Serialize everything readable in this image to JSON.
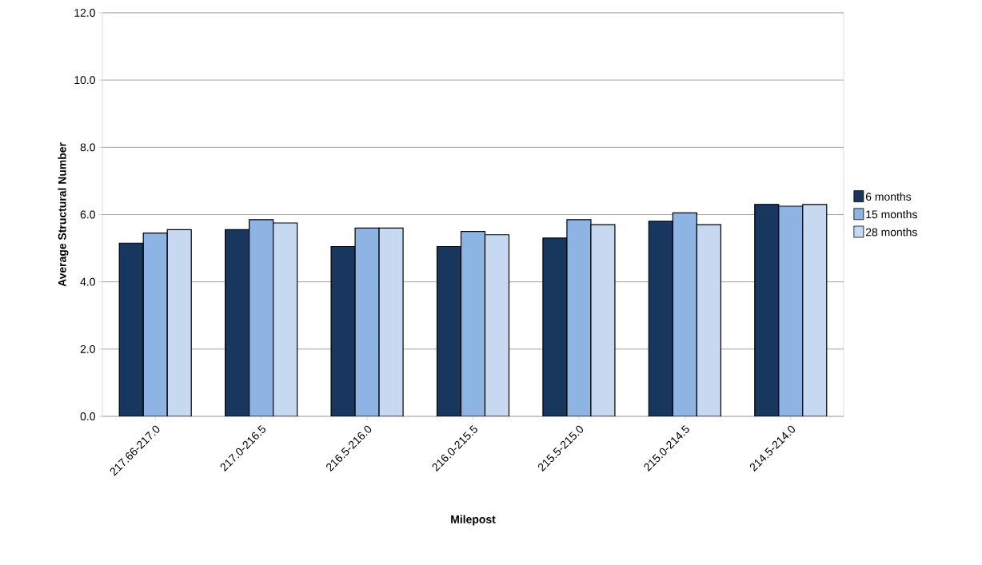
{
  "chart_data": {
    "type": "bar",
    "xlabel": "Milepost",
    "ylabel": "Average Structural Number",
    "categories": [
      "217.66-217.0",
      "217.0-216.5",
      "216.5-216.0",
      "216.0-215.5",
      "215.5-215.0",
      "215.0-214.5",
      "214.5-214.0"
    ],
    "series": [
      {
        "name": "6 months",
        "color": "#17375e",
        "values": [
          5.15,
          5.55,
          5.05,
          5.05,
          5.3,
          5.8,
          6.3
        ]
      },
      {
        "name": "15 months",
        "color": "#8eb4e3",
        "values": [
          5.45,
          5.85,
          5.6,
          5.5,
          5.85,
          6.05,
          6.25
        ]
      },
      {
        "name": "28 months",
        "color": "#c6d9f1",
        "values": [
          5.55,
          5.75,
          5.6,
          5.4,
          5.7,
          5.7,
          6.3
        ]
      }
    ],
    "ylim": [
      0,
      12
    ],
    "yticks": [
      {
        "value": 0,
        "label": "0.0"
      },
      {
        "value": 2,
        "label": "2.0"
      },
      {
        "value": 4,
        "label": "4.0"
      },
      {
        "value": 6,
        "label": "6.0"
      },
      {
        "value": 8,
        "label": "8.0"
      },
      {
        "value": 10,
        "label": "10.0"
      },
      {
        "value": 12,
        "label": "12.0"
      }
    ],
    "grid": "y",
    "legend": "right"
  }
}
